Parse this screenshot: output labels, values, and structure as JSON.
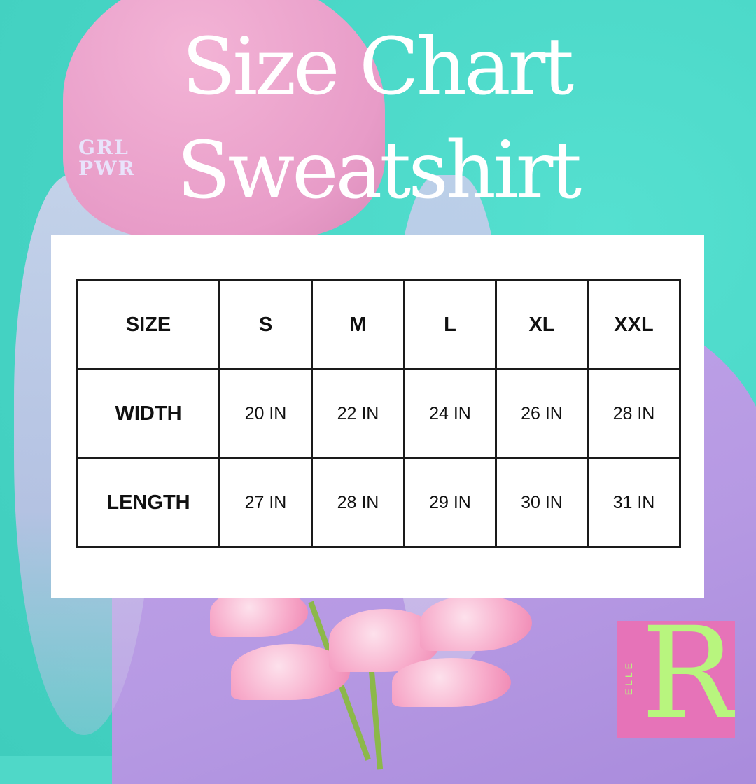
{
  "title_line1": "Size Chart",
  "title_line2": "Sweatshirt",
  "hat_embroidery": [
    "GRL",
    "PWR"
  ],
  "table": {
    "headers": [
      "SIZE",
      "S",
      "M",
      "L",
      "XL",
      "XXL"
    ],
    "rows": [
      {
        "label": "WIDTH",
        "values": [
          "20 IN",
          "22 IN",
          "24 IN",
          "26 IN",
          "28 IN"
        ]
      },
      {
        "label": "LENGTH",
        "values": [
          "27 IN",
          "28 IN",
          "29 IN",
          "30 IN",
          "31 IN"
        ]
      }
    ]
  },
  "logo": {
    "letter": "R",
    "text": "ELLE",
    "bg_color": "#e673b8",
    "fg_color": "#b8f57e"
  },
  "colors": {
    "background": "#4fd8c8",
    "panel": "#ffffff",
    "border": "#1a1a1a"
  }
}
